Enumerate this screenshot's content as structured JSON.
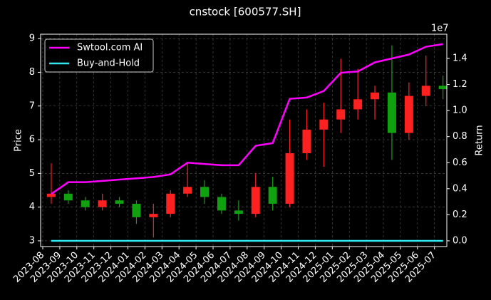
{
  "chart_data": {
    "type": "candlestick",
    "title": "cnstock [600577.SH]",
    "ylabel": "Price",
    "y2label": "Return",
    "y2_offset_label": "1e7",
    "categories": [
      "2023-08",
      "2023-09",
      "2023-10",
      "2023-11",
      "2023-12",
      "2024-01",
      "2024-02",
      "2024-03",
      "2024-04",
      "2024-05",
      "2024-06",
      "2024-07",
      "2024-08",
      "2024-09",
      "2024-10",
      "2024-11",
      "2024-12",
      "2025-01",
      "2025-02",
      "2025-03",
      "2025-04",
      "2025-05",
      "2025-06",
      "2025-07"
    ],
    "open": [
      4.3,
      4.4,
      4.2,
      4.0,
      4.2,
      4.1,
      3.7,
      3.8,
      4.4,
      4.6,
      4.3,
      3.9,
      3.8,
      4.6,
      4.1,
      5.6,
      6.3,
      6.6,
      6.9,
      7.2,
      7.4,
      6.2,
      7.3,
      7.6
    ],
    "high": [
      5.3,
      4.5,
      4.3,
      4.4,
      4.3,
      4.2,
      4.1,
      4.5,
      5.3,
      4.8,
      4.4,
      4.2,
      5.0,
      4.9,
      6.6,
      6.9,
      7.1,
      8.4,
      8.1,
      7.6,
      8.8,
      7.7,
      8.5,
      7.9
    ],
    "low": [
      4.1,
      4.1,
      3.9,
      3.9,
      4.0,
      3.5,
      3.1,
      3.7,
      4.3,
      4.1,
      3.8,
      3.6,
      3.7,
      3.9,
      4.0,
      5.4,
      5.2,
      6.2,
      6.6,
      6.6,
      5.4,
      6.0,
      7.0,
      7.2
    ],
    "close": [
      4.4,
      4.2,
      4.0,
      4.2,
      4.1,
      3.7,
      3.8,
      4.4,
      4.6,
      4.3,
      3.9,
      3.8,
      4.6,
      4.1,
      5.6,
      6.3,
      6.6,
      6.9,
      7.2,
      7.4,
      6.2,
      7.3,
      7.6,
      7.5
    ],
    "up_color": "#ff2020",
    "down_color": "#10a010",
    "series": [
      {
        "name": "Swtool.com AI",
        "color": "#ff00ff",
        "axis": "y2",
        "values": [
          0.36,
          0.45,
          0.45,
          0.46,
          0.47,
          0.48,
          0.49,
          0.51,
          0.6,
          0.59,
          0.58,
          0.58,
          0.73,
          0.75,
          1.09,
          1.1,
          1.15,
          1.29,
          1.3,
          1.37,
          1.4,
          1.43,
          1.49,
          1.51
        ]
      },
      {
        "name": "Buy-and-Hold",
        "color": "#33e6f0",
        "axis": "y2",
        "values": [
          0,
          0,
          0,
          0,
          0,
          0,
          0,
          0,
          0,
          0,
          0,
          0,
          0,
          0,
          0,
          0,
          0,
          0,
          0,
          0,
          0,
          0,
          0,
          0
        ]
      }
    ],
    "ylim": [
      2.83,
      9.13
    ],
    "yticks": [
      3,
      4,
      5,
      6,
      7,
      8,
      9
    ],
    "y2lim": [
      -0.044,
      1.586
    ],
    "y2ticks": [
      {
        "value": 0,
        "label": "0.0"
      },
      {
        "value": 0.2,
        "label": "0.2"
      },
      {
        "value": 0.4,
        "label": "0.4"
      },
      {
        "value": 0.6,
        "label": "0.6"
      },
      {
        "value": 0.8,
        "label": "0.8"
      },
      {
        "value": 1.0,
        "label": "1.0"
      },
      {
        "value": 1.2,
        "label": "1.2"
      },
      {
        "value": 1.4,
        "label": "1.4"
      }
    ],
    "grid": true,
    "legend": "upper left"
  }
}
